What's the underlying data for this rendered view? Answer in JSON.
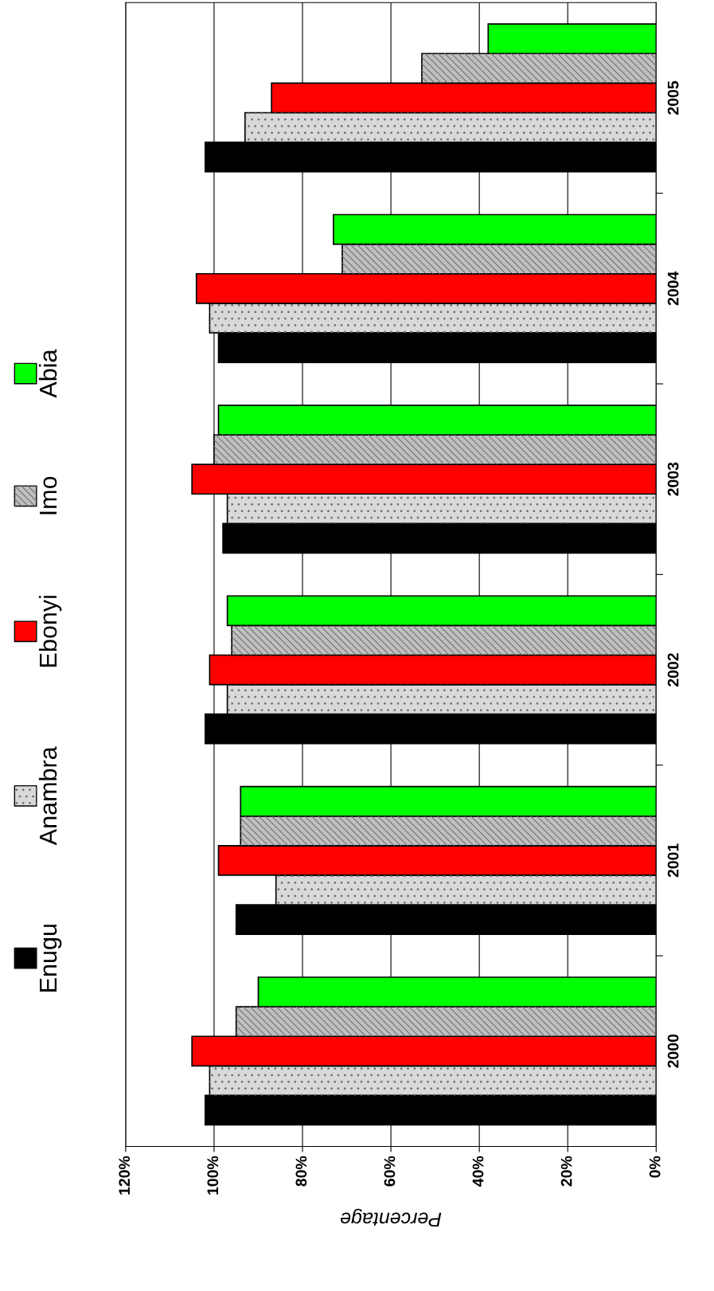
{
  "chart_data": {
    "type": "bar",
    "orientation": "horizontal",
    "xlabel": "Percentage",
    "categories": [
      "2005",
      "2004",
      "2003",
      "2002",
      "2001",
      "2000"
    ],
    "series": [
      {
        "name": "Enugu",
        "color": "#000000",
        "values": [
          102,
          99,
          98,
          102,
          95,
          102
        ]
      },
      {
        "name": "Anambra",
        "color": "#d9d9d9",
        "values": [
          93,
          101,
          97,
          97,
          86,
          101
        ]
      },
      {
        "name": "Ebonyi",
        "color": "#ff0000",
        "values": [
          87,
          104,
          105,
          101,
          99,
          105
        ]
      },
      {
        "name": "Imo",
        "color": "#bfbfbf",
        "values": [
          53,
          71,
          100,
          96,
          94,
          95
        ]
      },
      {
        "name": "Abia",
        "color": "#00ff00",
        "values": [
          38,
          73,
          99,
          97,
          94,
          90
        ]
      }
    ],
    "xlim": [
      120,
      0
    ],
    "xticks": [
      {
        "value": 0,
        "label": "0%"
      },
      {
        "value": 20,
        "label": "20%"
      },
      {
        "value": 40,
        "label": "40%"
      },
      {
        "value": 60,
        "label": "60%"
      },
      {
        "value": 80,
        "label": "80%"
      },
      {
        "value": 100,
        "label": "100%"
      },
      {
        "value": 120,
        "label": "120%"
      }
    ],
    "grid": "x",
    "legend": "left"
  }
}
